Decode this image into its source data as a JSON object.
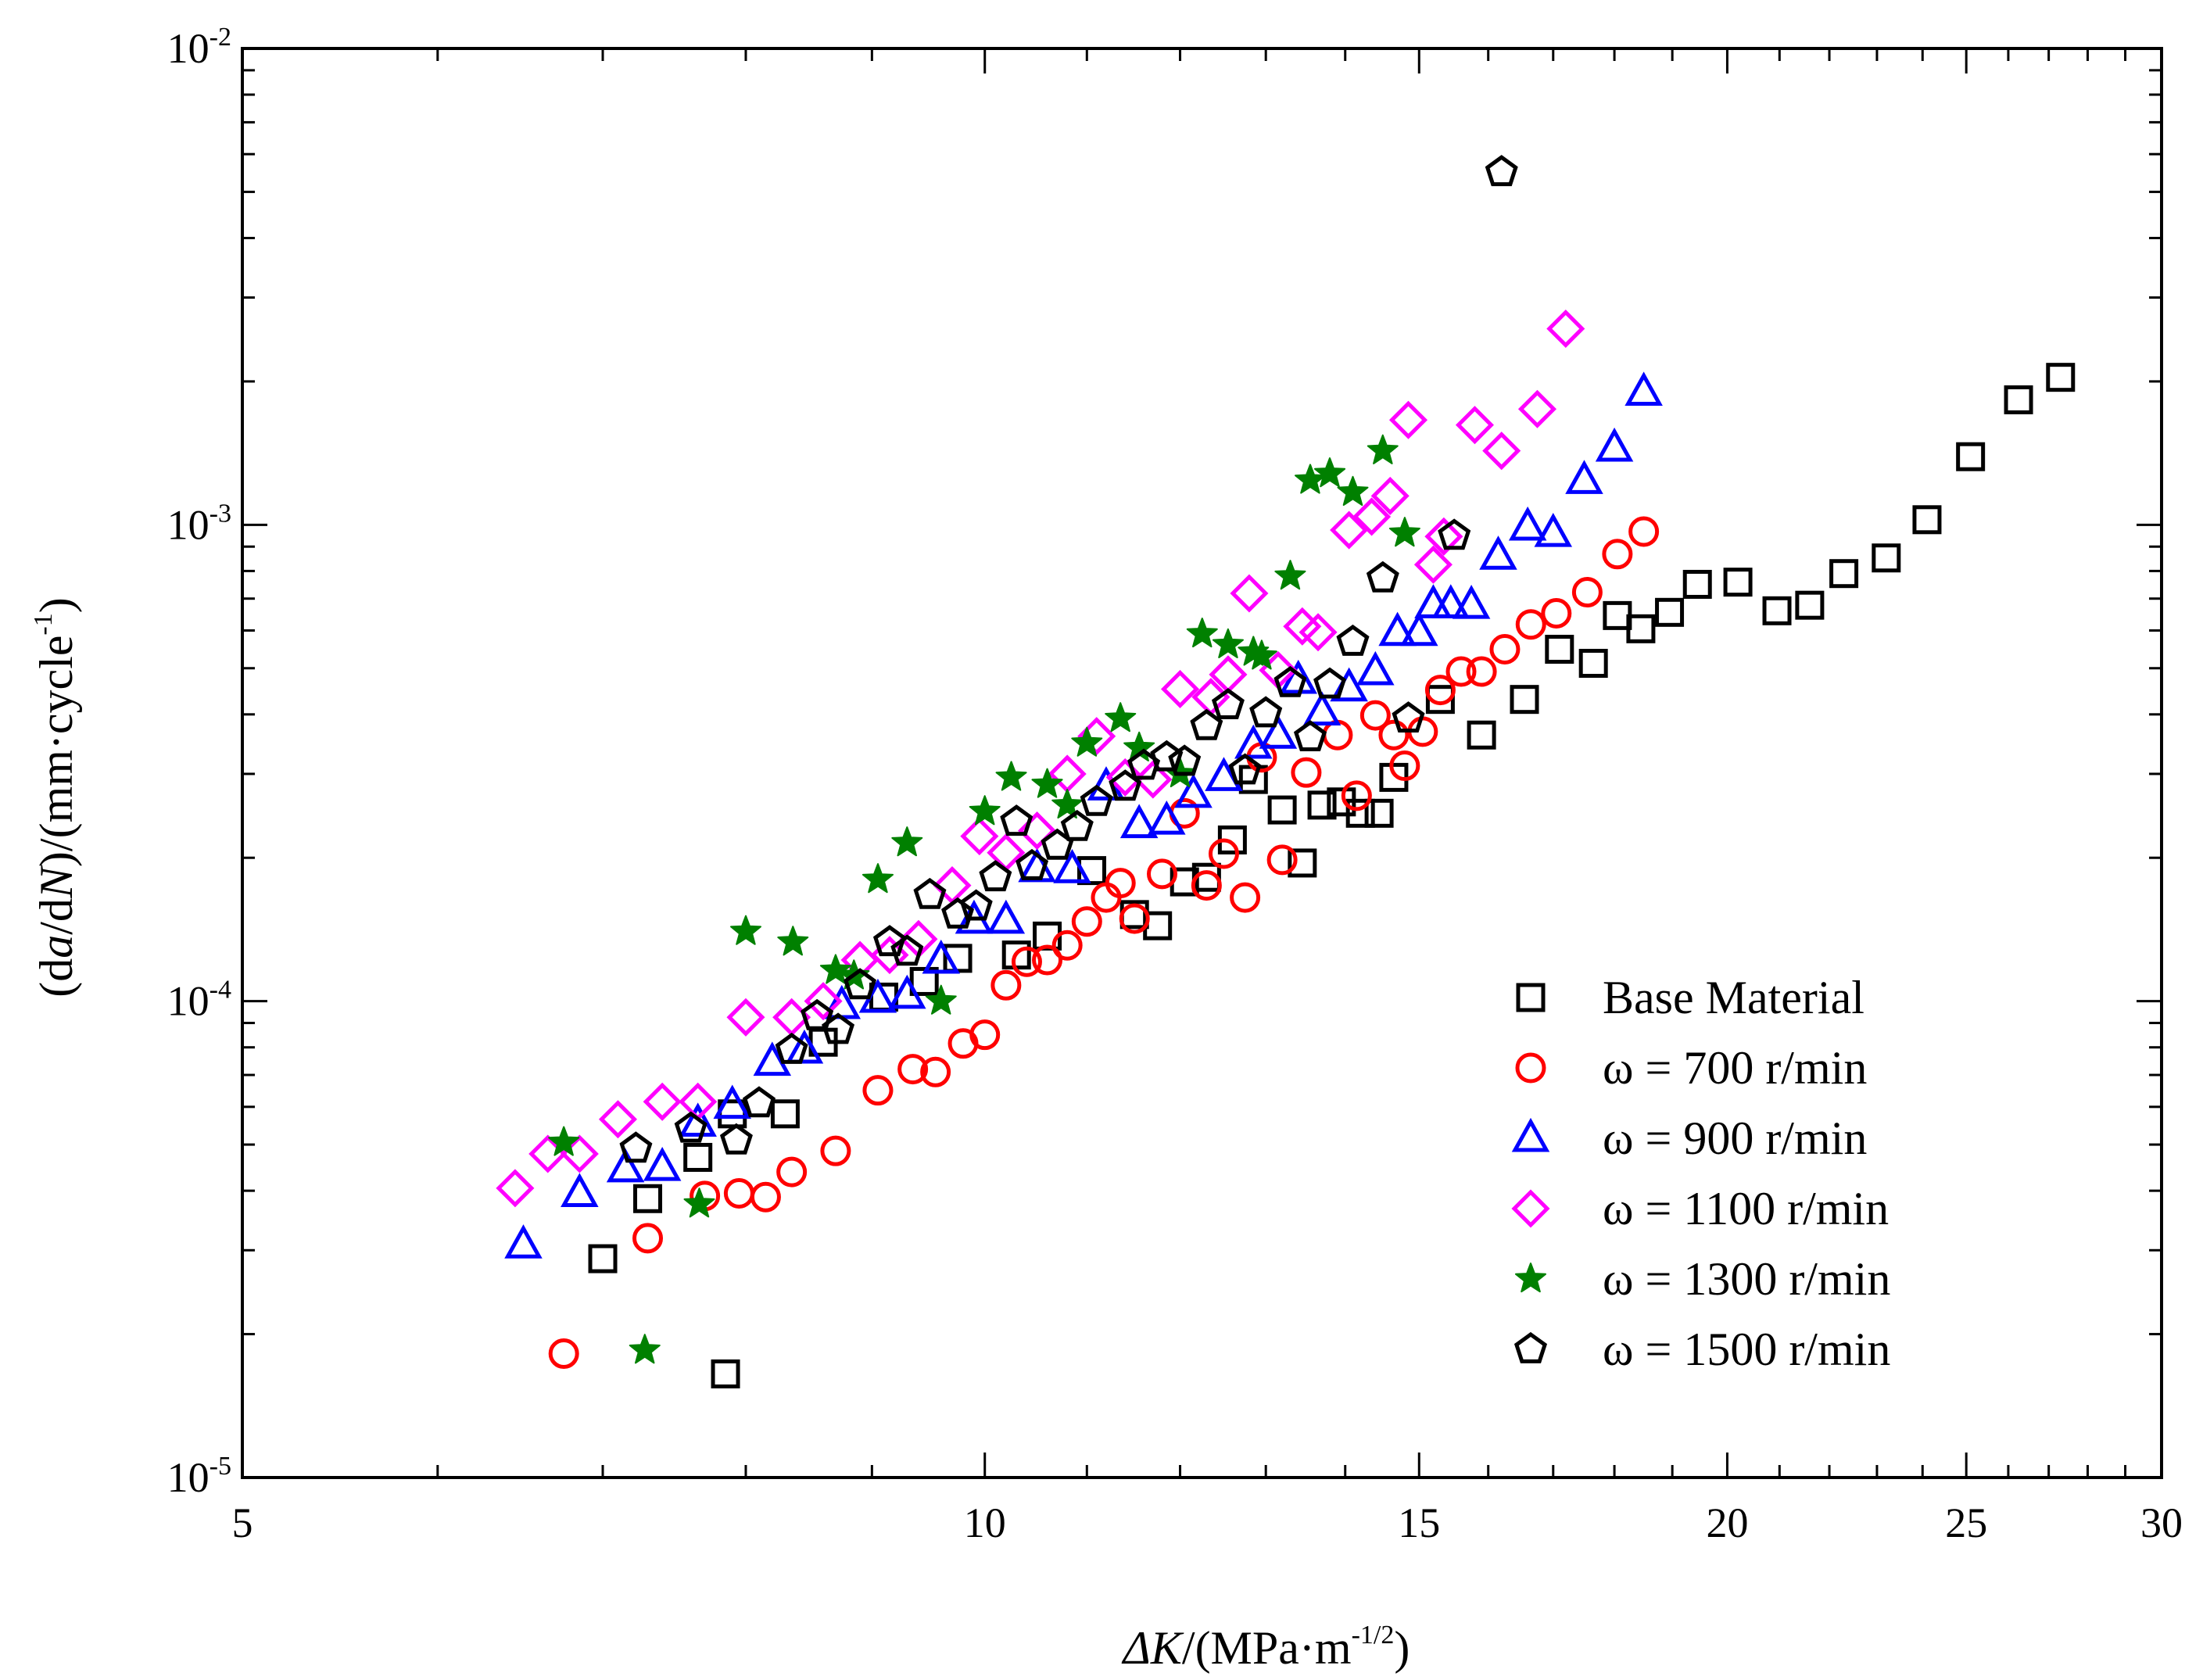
{
  "chart_data": {
    "type": "scatter",
    "x_scale": "log",
    "y_scale": "log",
    "xlim": [
      5,
      30
    ],
    "ylim": [
      1e-05,
      0.01
    ],
    "xlabel": {
      "prefix": "ΔK",
      "unit_open": "/(MPa·m",
      "unit_exp": "-1/2",
      "unit_close": ")"
    },
    "ylabel": {
      "p1": "(d",
      "a": "a",
      "p2": "/d",
      "N": "N",
      "p3": ")/(mm·cycle",
      "exp": "-1",
      "p4": ")"
    },
    "x_ticks": [
      {
        "value": 5,
        "label": "5"
      },
      {
        "value": 10,
        "label": "10"
      },
      {
        "value": 15,
        "label": "15"
      },
      {
        "value": 20,
        "label": "20"
      },
      {
        "value": 25,
        "label": "25"
      },
      {
        "value": 30,
        "label": "30"
      }
    ],
    "y_ticks": [
      {
        "value": 1e-05,
        "base": "10",
        "exp": "-5"
      },
      {
        "value": 0.0001,
        "base": "10",
        "exp": "-4"
      },
      {
        "value": 0.001,
        "base": "10",
        "exp": "-3"
      },
      {
        "value": 0.01,
        "base": "10",
        "exp": "-2"
      }
    ],
    "legend_position": "bottom-right",
    "series": [
      {
        "name": "Base Material",
        "marker": "square",
        "color": "#000000",
        "points": [
          [
            7.85,
            1.65e-05
          ],
          [
            7.0,
            2.88e-05
          ],
          [
            7.3,
            3.85e-05
          ],
          [
            7.65,
            4.7e-05
          ],
          [
            7.9,
            5.8e-05
          ],
          [
            8.3,
            5.8e-05
          ],
          [
            8.6,
            8.2e-05
          ],
          [
            9.1,
            0.000102
          ],
          [
            9.45,
            0.00011
          ],
          [
            9.75,
            0.000123
          ],
          [
            10.3,
            0.000125
          ],
          [
            10.6,
            0.000137
          ],
          [
            11.05,
            0.000188
          ],
          [
            11.5,
            0.000152
          ],
          [
            11.75,
            0.000144
          ],
          [
            12.05,
            0.000178
          ],
          [
            12.3,
            0.000182
          ],
          [
            12.6,
            0.000218
          ],
          [
            12.85,
            0.000292
          ],
          [
            13.2,
            0.000252
          ],
          [
            13.45,
            0.000195
          ],
          [
            13.7,
            0.000258
          ],
          [
            13.95,
            0.000262
          ],
          [
            14.2,
            0.000248
          ],
          [
            14.45,
            0.000248
          ],
          [
            14.65,
            0.000295
          ],
          [
            15.3,
            0.00043
          ],
          [
            15.9,
            0.000362
          ],
          [
            16.55,
            0.00043
          ],
          [
            17.1,
            0.000548
          ],
          [
            17.65,
            0.000512
          ],
          [
            18.05,
            0.000645
          ],
          [
            18.45,
            0.000605
          ],
          [
            18.95,
            0.000655
          ],
          [
            19.45,
            0.00075
          ],
          [
            20.2,
            0.000758
          ],
          [
            20.95,
            0.00066
          ],
          [
            21.6,
            0.000678
          ],
          [
            22.3,
            0.00079
          ],
          [
            23.2,
            0.000852
          ],
          [
            24.1,
            0.001025
          ],
          [
            25.1,
            0.00139
          ],
          [
            26.25,
            0.00183
          ],
          [
            27.3,
            0.00204
          ]
        ]
      },
      {
        "name": "ω = 700 r/min",
        "marker": "circle",
        "color": "#ff0000",
        "points": [
          [
            6.75,
            1.82e-05
          ],
          [
            7.3,
            3.18e-05
          ],
          [
            7.7,
            3.9e-05
          ],
          [
            7.95,
            3.95e-05
          ],
          [
            8.15,
            3.88e-05
          ],
          [
            8.35,
            4.38e-05
          ],
          [
            8.7,
            4.85e-05
          ],
          [
            9.05,
            6.5e-05
          ],
          [
            9.35,
            7.2e-05
          ],
          [
            9.55,
            7.1e-05
          ],
          [
            9.8,
            8.15e-05
          ],
          [
            10.0,
            8.5e-05
          ],
          [
            10.2,
            0.000108
          ],
          [
            10.4,
            0.000121
          ],
          [
            10.6,
            0.000122
          ],
          [
            10.8,
            0.000131
          ],
          [
            11.0,
            0.000147
          ],
          [
            11.2,
            0.000165
          ],
          [
            11.35,
            0.000177
          ],
          [
            11.5,
            0.000149
          ],
          [
            11.8,
            0.000185
          ],
          [
            12.05,
            0.000248
          ],
          [
            12.3,
            0.000175
          ],
          [
            12.5,
            0.000204
          ],
          [
            12.75,
            0.000165
          ],
          [
            12.95,
            0.000325
          ],
          [
            13.2,
            0.000198
          ],
          [
            13.5,
            0.000302
          ],
          [
            13.9,
            0.000362
          ],
          [
            14.15,
            0.00027
          ],
          [
            14.4,
            0.000398
          ],
          [
            14.65,
            0.000362
          ],
          [
            14.8,
            0.000312
          ],
          [
            15.05,
            0.000368
          ],
          [
            15.3,
            0.00045
          ],
          [
            15.6,
            0.000492
          ],
          [
            15.9,
            0.000492
          ],
          [
            16.25,
            0.000548
          ],
          [
            16.65,
            0.000618
          ],
          [
            17.05,
            0.000652
          ],
          [
            17.55,
            0.000722
          ],
          [
            18.05,
            0.000868
          ],
          [
            18.5,
            0.000968
          ]
        ]
      },
      {
        "name": "ω = 900 r/min",
        "marker": "triangle",
        "color": "#0000ff",
        "points": [
          [
            6.5,
            3.08e-05
          ],
          [
            6.85,
            3.95e-05
          ],
          [
            7.15,
            4.45e-05
          ],
          [
            7.4,
            4.48e-05
          ],
          [
            7.65,
            5.55e-05
          ],
          [
            7.9,
            6.05e-05
          ],
          [
            8.2,
            7.45e-05
          ],
          [
            8.45,
            7.9e-05
          ],
          [
            8.75,
            9.8e-05
          ],
          [
            9.05,
            0.000101
          ],
          [
            9.3,
            0.000103
          ],
          [
            9.6,
            0.000122
          ],
          [
            9.9,
            0.000148
          ],
          [
            10.2,
            0.000148
          ],
          [
            10.5,
            0.00019
          ],
          [
            10.85,
            0.000189
          ],
          [
            11.2,
            0.000282
          ],
          [
            11.55,
            0.000235
          ],
          [
            11.85,
            0.000239
          ],
          [
            12.15,
            0.000272
          ],
          [
            12.5,
            0.000295
          ],
          [
            12.85,
            0.000345
          ],
          [
            13.15,
            0.000362
          ],
          [
            13.4,
            0.000472
          ],
          [
            13.7,
            0.000405
          ],
          [
            14.05,
            0.000455
          ],
          [
            14.4,
            0.000492
          ],
          [
            14.7,
            0.000595
          ],
          [
            15.0,
            0.000595
          ],
          [
            15.2,
            0.00068
          ],
          [
            15.45,
            0.00068
          ],
          [
            15.75,
            0.000678
          ],
          [
            16.15,
            0.00086
          ],
          [
            16.6,
            0.00099
          ],
          [
            17.0,
            0.00096
          ],
          [
            17.5,
            0.00124
          ],
          [
            18.0,
            0.00145
          ],
          [
            18.5,
            0.0019
          ]
        ]
      },
      {
        "name": "ω = 1100 r/min",
        "marker": "diamond",
        "color": "#ff00ff",
        "points": [
          [
            6.45,
            4.05e-05
          ],
          [
            6.65,
            4.78e-05
          ],
          [
            6.85,
            4.78e-05
          ],
          [
            7.1,
            5.65e-05
          ],
          [
            7.4,
            6.15e-05
          ],
          [
            7.65,
            6.15e-05
          ],
          [
            8.0,
            9.25e-05
          ],
          [
            8.35,
            9.25e-05
          ],
          [
            8.6,
            0.0001
          ],
          [
            8.9,
            0.000122
          ],
          [
            9.15,
            0.000125
          ],
          [
            9.4,
            0.000135
          ],
          [
            9.7,
            0.000175
          ],
          [
            9.95,
            0.000222
          ],
          [
            10.2,
            0.000205
          ],
          [
            10.5,
            0.000228
          ],
          [
            10.8,
            0.0003
          ],
          [
            11.1,
            0.00036
          ],
          [
            11.4,
            0.000295
          ],
          [
            11.7,
            0.000292
          ],
          [
            12.0,
            0.000452
          ],
          [
            12.35,
            0.000435
          ],
          [
            12.55,
            0.000485
          ],
          [
            12.8,
            0.000718
          ],
          [
            13.15,
            0.000495
          ],
          [
            13.45,
            0.000612
          ],
          [
            13.65,
            0.000595
          ],
          [
            14.05,
            0.000975
          ],
          [
            14.35,
            0.00104
          ],
          [
            14.6,
            0.00115
          ],
          [
            14.85,
            0.00166
          ],
          [
            15.2,
            0.000825
          ],
          [
            15.35,
            0.000945
          ],
          [
            15.8,
            0.00162
          ],
          [
            16.2,
            0.00143
          ],
          [
            16.75,
            0.00175
          ],
          [
            17.2,
            0.00258
          ]
        ]
      },
      {
        "name": "ω = 1300 r/min",
        "marker": "star",
        "color": "#008000",
        "points": [
          [
            6.75,
            5.05e-05
          ],
          [
            7.28,
            1.85e-05
          ],
          [
            7.66,
            3.75e-05
          ],
          [
            8.0,
            0.00014
          ],
          [
            8.36,
            0.000133
          ],
          [
            8.7,
            0.000116
          ],
          [
            8.85,
            0.000113
          ],
          [
            9.05,
            0.00018
          ],
          [
            9.3,
            0.000215
          ],
          [
            9.6,
            0.0001
          ],
          [
            10.0,
            0.00025
          ],
          [
            10.25,
            0.000295
          ],
          [
            10.6,
            0.000285
          ],
          [
            10.8,
            0.000258
          ],
          [
            11.0,
            0.000348
          ],
          [
            11.35,
            0.000392
          ],
          [
            11.55,
            0.00034
          ],
          [
            12.0,
            0.0003
          ],
          [
            12.25,
            0.00059
          ],
          [
            12.55,
            0.00056
          ],
          [
            12.85,
            0.00054
          ],
          [
            12.95,
            0.00053
          ],
          [
            13.3,
            0.00078
          ],
          [
            13.55,
            0.00124
          ],
          [
            13.8,
            0.00128
          ],
          [
            14.1,
            0.00117
          ],
          [
            14.5,
            0.00143
          ],
          [
            14.8,
            0.00096
          ]
        ]
      },
      {
        "name": "ω = 1500 r/min",
        "marker": "pentagon",
        "color": "#000000",
        "points": [
          [
            7.22,
            4.9e-05
          ],
          [
            7.6,
            5.4e-05
          ],
          [
            7.93,
            5.1e-05
          ],
          [
            8.1,
            6.1e-05
          ],
          [
            8.35,
            7.9e-05
          ],
          [
            8.55,
            9.3e-05
          ],
          [
            8.72,
            8.7e-05
          ],
          [
            8.9,
            0.000108
          ],
          [
            9.15,
            0.000133
          ],
          [
            9.3,
            0.000127
          ],
          [
            9.5,
            0.000167
          ],
          [
            9.75,
            0.000152
          ],
          [
            9.92,
            0.000158
          ],
          [
            10.1,
            0.000182
          ],
          [
            10.3,
            0.000238
          ],
          [
            10.45,
            0.000192
          ],
          [
            10.7,
            0.000212
          ],
          [
            10.9,
            0.000232
          ],
          [
            11.1,
            0.000262
          ],
          [
            11.4,
            0.000282
          ],
          [
            11.6,
            0.000312
          ],
          [
            11.85,
            0.000325
          ],
          [
            12.05,
            0.000318
          ],
          [
            12.3,
            0.000378
          ],
          [
            12.55,
            0.000418
          ],
          [
            12.75,
            0.000305
          ],
          [
            13.0,
            0.000402
          ],
          [
            13.3,
            0.000465
          ],
          [
            13.55,
            0.000358
          ],
          [
            13.8,
            0.000462
          ],
          [
            14.1,
            0.000568
          ],
          [
            14.5,
            0.000772
          ],
          [
            14.85,
            0.000392
          ],
          [
            15.5,
            0.000948
          ],
          [
            16.2,
            0.0055
          ]
        ]
      }
    ]
  }
}
